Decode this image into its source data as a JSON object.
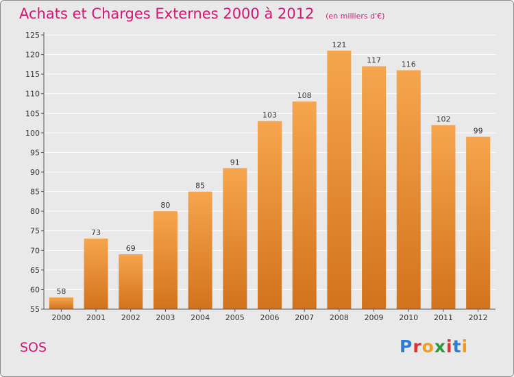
{
  "title": "Achats et Charges Externes 2000 à 2012",
  "unit_note": "(en milliers d'€)",
  "location": "SOS",
  "logo": {
    "text": "Proxiti",
    "letter_colors": [
      "#2a7fd4",
      "#e0302a",
      "#f39a1f",
      "#2a9a3c",
      "#e0302a",
      "#2a7fd4",
      "#f39a1f"
    ]
  },
  "colors": {
    "bar_light": "#f6a54e",
    "bar_dark": "#d2731c",
    "title": "#d21873",
    "background": "#e9e9e9",
    "grid": "#ffffff"
  },
  "chart_data": {
    "type": "bar",
    "title": "Achats et Charges Externes 2000 à 2012",
    "categories": [
      "2000",
      "2001",
      "2002",
      "2003",
      "2004",
      "2005",
      "2006",
      "2007",
      "2008",
      "2009",
      "2010",
      "2011",
      "2012"
    ],
    "values": [
      58,
      73,
      69,
      80,
      85,
      91,
      103,
      108,
      121,
      117,
      116,
      102,
      99
    ],
    "xlabel": "",
    "ylabel": "",
    "ylim": [
      55,
      125
    ],
    "yticks": [
      55,
      60,
      65,
      70,
      75,
      80,
      85,
      90,
      95,
      100,
      105,
      110,
      115,
      120,
      125
    ],
    "grid": true,
    "data_labels": true
  }
}
